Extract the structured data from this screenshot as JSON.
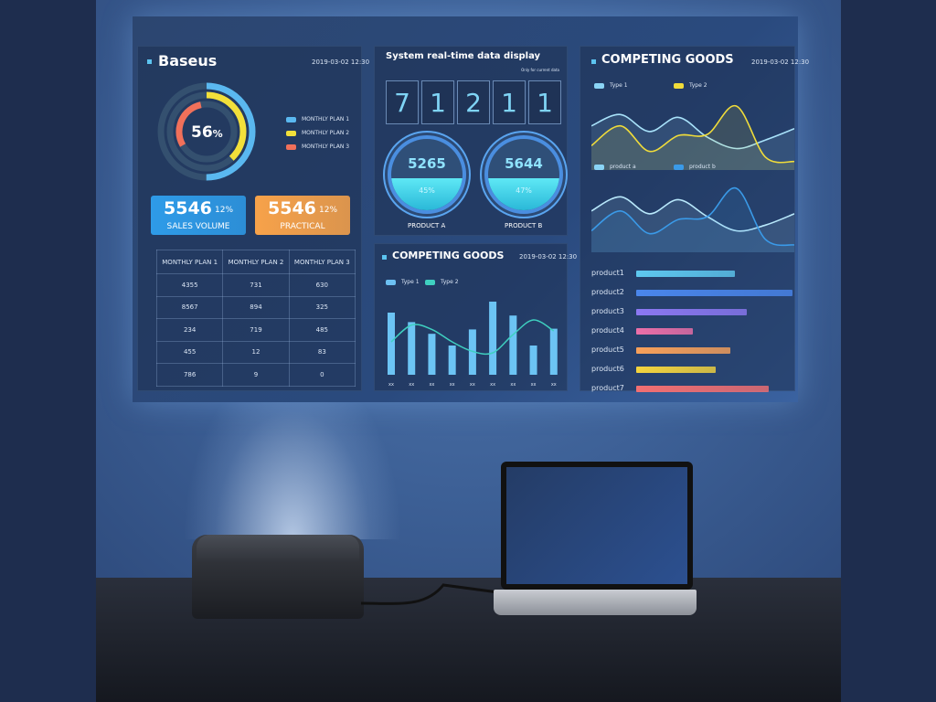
{
  "brand": {
    "title": "Baseus",
    "date": "2019-03-02  12:30"
  },
  "ring": {
    "center_value": "56",
    "center_unit": "%",
    "legend": [
      {
        "label": "MONTHLY PLAN 1",
        "color": "#5ab8f0",
        "fraction": 0.5
      },
      {
        "label": "MONTHLY PLAN 2",
        "color": "#f2e03a",
        "fraction": 0.38
      },
      {
        "label": "MONTHLY PLAN 3",
        "color": "#f0705a",
        "fraction": 0.3
      }
    ]
  },
  "cards": [
    {
      "value": "5546",
      "pct": "12%",
      "label": "SALES VOLUME",
      "color": "#2e9be8"
    },
    {
      "value": "5546",
      "pct": "12%",
      "label": "PRACTICAL",
      "color": "#f7a24a"
    }
  ],
  "table": {
    "headers": [
      "MONTHLY PLAN 1",
      "MONTHLY PLAN 2",
      "MONTHLY PLAN 3"
    ],
    "rows": [
      [
        "4355",
        "731",
        "630"
      ],
      [
        "8567",
        "894",
        "325"
      ],
      [
        "234",
        "719",
        "485"
      ],
      [
        "455",
        "12",
        "83"
      ],
      [
        "786",
        "9",
        "0"
      ]
    ]
  },
  "realtime": {
    "title": "System real-time data display",
    "note": "Only for current data",
    "digits": [
      "7",
      "1",
      "2",
      "1",
      "1"
    ],
    "products": [
      {
        "value": "5265",
        "pct": "45%",
        "label": "PRODUCT A"
      },
      {
        "value": "5644",
        "pct": "47%",
        "label": "PRODUCT B"
      }
    ]
  },
  "competing_bar": {
    "title": "COMPETING GOODS",
    "date": "2019-03-02  12:30",
    "legend": [
      "Type 1",
      "Type 2"
    ]
  },
  "competing_right": {
    "title": "COMPETING GOODS",
    "date": "2019-03-02  12:30",
    "legend_top": [
      "Type 1",
      "Type 2"
    ],
    "legend_bottom": [
      "product a",
      "product b"
    ],
    "products": [
      {
        "label": "product1",
        "value": 0.63,
        "color": "#5ec8ef"
      },
      {
        "label": "product2",
        "value": 1.0,
        "color": "#4a86ec"
      },
      {
        "label": "product3",
        "value": 0.71,
        "color": "#8c78f2"
      },
      {
        "label": "product4",
        "value": 0.36,
        "color": "#ec6fa8"
      },
      {
        "label": "product5",
        "value": 0.6,
        "color": "#f7a05a"
      },
      {
        "label": "product6",
        "value": 0.51,
        "color": "#f4d43e"
      },
      {
        "label": "product7",
        "value": 0.85,
        "color": "#f26f72"
      }
    ]
  },
  "chart_data": [
    {
      "type": "bar",
      "title": "COMPETING GOODS",
      "categories": [
        "xx",
        "xx",
        "xx",
        "xx",
        "xx",
        "xx",
        "xx",
        "xx",
        "xx"
      ],
      "series": [
        {
          "name": "Type 1",
          "values": [
            0.85,
            0.72,
            0.56,
            0.4,
            0.62,
            1.0,
            0.81,
            0.4,
            0.63
          ]
        },
        {
          "name": "Type 2",
          "values": [
            0.45,
            0.68,
            0.62,
            0.45,
            0.32,
            0.3,
            0.55,
            0.75,
            0.6
          ]
        }
      ]
    },
    {
      "type": "line",
      "series": [
        {
          "name": "Type 1",
          "values": [
            0.65,
            0.85,
            0.55,
            0.8,
            0.45,
            0.25,
            0.4,
            0.6
          ]
        },
        {
          "name": "Type 2",
          "values": [
            0.3,
            0.65,
            0.2,
            0.48,
            0.5,
            1.0,
            0.1,
            0.02
          ]
        }
      ]
    },
    {
      "type": "line",
      "series": [
        {
          "name": "product a",
          "values": [
            0.6,
            0.85,
            0.55,
            0.8,
            0.5,
            0.25,
            0.35,
            0.55
          ]
        },
        {
          "name": "product b",
          "values": [
            0.25,
            0.6,
            0.2,
            0.45,
            0.5,
            1.0,
            0.1,
            0.0
          ]
        }
      ]
    }
  ]
}
